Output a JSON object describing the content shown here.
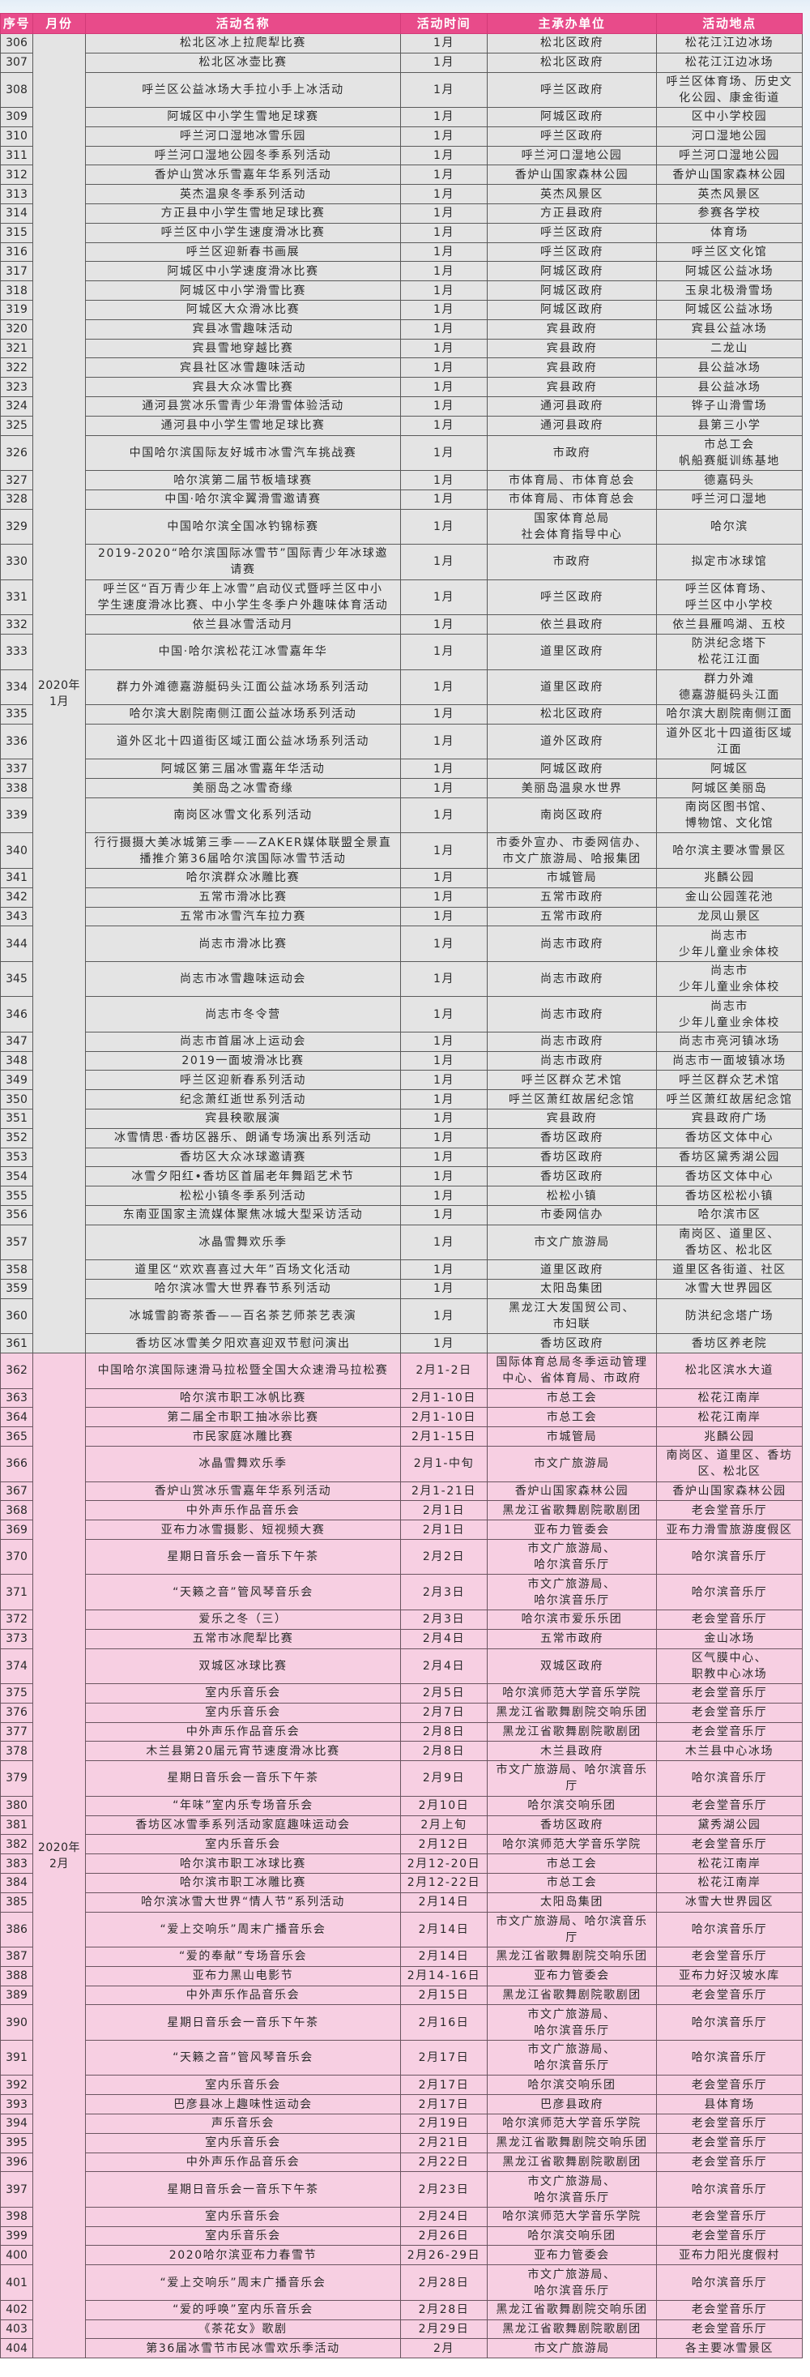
{
  "colors": {
    "header": "#e84b8a",
    "jan_row": "#e4e4e4",
    "feb_row": "#f7cfe2"
  },
  "headers": [
    "序号",
    "月份",
    "活动名称",
    "活动时间",
    "主承办单位",
    "活动地点"
  ],
  "groups": [
    {
      "month": "2020年\n1月",
      "cls": "jan",
      "rows": [
        [
          "306",
          "松北区冰上拉爬犁比赛",
          "1月",
          "松北区政府",
          "松花江江边冰场"
        ],
        [
          "307",
          "松北区冰壶比赛",
          "1月",
          "松北区政府",
          "松花江江边冰场"
        ],
        [
          "308",
          "呼兰区公益冰场大手拉小手上冰活动",
          "1月",
          "呼兰区政府",
          "呼兰区体育场、历史文\n化公园、康金街道"
        ],
        [
          "309",
          "阿城区中小学生雪地足球赛",
          "1月",
          "阿城区政府",
          "区中小学校园"
        ],
        [
          "310",
          "呼兰河口湿地冰雪乐园",
          "1月",
          "呼兰区政府",
          "河口湿地公园"
        ],
        [
          "311",
          "呼兰河口湿地公园冬季系列活动",
          "1月",
          "呼兰河口湿地公园",
          "呼兰河口湿地公园"
        ],
        [
          "312",
          "香炉山赏冰乐雪嘉年华系列活动",
          "1月",
          "香炉山国家森林公园",
          "香炉山国家森林公园"
        ],
        [
          "313",
          "英杰温泉冬季系列活动",
          "1月",
          "英杰风景区",
          "英杰风景区"
        ],
        [
          "314",
          "方正县中小学生雪地足球比赛",
          "1月",
          "方正县政府",
          "参赛各学校"
        ],
        [
          "315",
          "呼兰区中小学生速度滑冰比赛",
          "1月",
          "呼兰区政府",
          "体育场"
        ],
        [
          "316",
          "呼兰区迎新春书画展",
          "1月",
          "呼兰区政府",
          "呼兰区文化馆"
        ],
        [
          "317",
          "阿城区中小学速度滑冰比赛",
          "1月",
          "阿城区政府",
          "阿城区公益冰场"
        ],
        [
          "318",
          "阿城区中小学滑雪比赛",
          "1月",
          "阿城区政府",
          "玉泉北极滑雪场"
        ],
        [
          "319",
          "阿城区大众滑冰比赛",
          "1月",
          "阿城区政府",
          "阿城区公益冰场"
        ],
        [
          "320",
          "宾县冰雪趣味活动",
          "1月",
          "宾县政府",
          "宾县公益冰场"
        ],
        [
          "321",
          "宾县雪地穿越比赛",
          "1月",
          "宾县政府",
          "二龙山"
        ],
        [
          "322",
          "宾县社区冰雪趣味活动",
          "1月",
          "宾县政府",
          "县公益冰场"
        ],
        [
          "323",
          "宾县大众冰雪比赛",
          "1月",
          "宾县政府",
          "县公益冰场"
        ],
        [
          "324",
          "通河县赏冰乐雪青少年滑雪体验活动",
          "1月",
          "通河县政府",
          "铧子山滑雪场"
        ],
        [
          "325",
          "通河县中小学生雪地足球比赛",
          "1月",
          "通河县政府",
          "县第三小学"
        ],
        [
          "326",
          "中国哈尔滨国际友好城市冰雪汽车挑战赛",
          "1月",
          "市政府",
          "市总工会\n帆船赛艇训练基地"
        ],
        [
          "327",
          "哈尔滨第二届节板墙球赛",
          "1月",
          "市体育局、市体育总会",
          "德嘉码头"
        ],
        [
          "328",
          "中国·哈尔滨伞翼滑雪邀请赛",
          "1月",
          "市体育局、市体育总会",
          "呼兰河口湿地"
        ],
        [
          "329",
          "中国哈尔滨全国冰钓锦标赛",
          "1月",
          "国家体育总局\n社会体育指导中心",
          "哈尔滨"
        ],
        [
          "330",
          "2019-2020“哈尔滨国际冰雪节”国际青少年冰球邀\n请赛",
          "1月",
          "市政府",
          "拟定市冰球馆"
        ],
        [
          "331",
          "呼兰区“百万青少年上冰雪”启动仪式暨呼兰区中小\n学生速度滑冰比赛、中小学生冬季户外趣味体育活动",
          "1月",
          "呼兰区政府",
          "呼兰区体育场、\n呼兰区中小学校"
        ],
        [
          "332",
          "依兰县冰雪活动月",
          "1月",
          "依兰县政府",
          "依兰县雁鸣湖、五校"
        ],
        [
          "333",
          "中国·哈尔滨松花江冰雪嘉年华",
          "1月",
          "道里区政府",
          "防洪纪念塔下\n松花江江面"
        ],
        [
          "334",
          "群力外滩德嘉游艇码头江面公益冰场系列活动",
          "1月",
          "道里区政府",
          "群力外滩\n德嘉游艇码头江面"
        ],
        [
          "335",
          "哈尔滨大剧院南侧江面公益冰场系列活动",
          "1月",
          "松北区政府",
          "哈尔滨大剧院南侧江面"
        ],
        [
          "336",
          "道外区北十四道街区域江面公益冰场系列活动",
          "1月",
          "道外区政府",
          "道外区北十四道街区域\n江面"
        ],
        [
          "337",
          "阿城区第三届冰雪嘉年华活动",
          "1月",
          "阿城区政府",
          "阿城区"
        ],
        [
          "338",
          "美丽岛之冰雪奇缘",
          "1月",
          "美丽岛温泉水世界",
          "阿城区美丽岛"
        ],
        [
          "339",
          "南岗区冰雪文化系列活动",
          "1月",
          "南岗区政府",
          "南岗区图书馆、\n博物馆、文化馆"
        ],
        [
          "340",
          "行行摄摄大美冰城第三季——ZAKER媒体联盟全景直\n播推介第36届哈尔滨国际冰雪节活动",
          "1月",
          "市委外宣办、市委网信办、\n市文广旅游局、哈报集团",
          "哈尔滨主要冰雪景区"
        ],
        [
          "341",
          "哈尔滨群众冰雕比赛",
          "1月",
          "市城管局",
          "兆麟公园"
        ],
        [
          "342",
          "五常市滑冰比赛",
          "1月",
          "五常市政府",
          "金山公园莲花池"
        ],
        [
          "343",
          "五常市冰雪汽车拉力赛",
          "1月",
          "五常市政府",
          "龙凤山景区"
        ],
        [
          "344",
          "尚志市滑冰比赛",
          "1月",
          "尚志市政府",
          "尚志市\n少年儿童业余体校"
        ],
        [
          "345",
          "尚志市冰雪趣味运动会",
          "1月",
          "尚志市政府",
          "尚志市\n少年儿童业余体校"
        ],
        [
          "346",
          "尚志市冬令营",
          "1月",
          "尚志市政府",
          "尚志市\n少年儿童业余体校"
        ],
        [
          "347",
          "尚志市首届冰上运动会",
          "1月",
          "尚志市政府",
          "尚志市亮河镇冰场"
        ],
        [
          "348",
          "2019一面坡滑冰比赛",
          "1月",
          "尚志市政府",
          "尚志市一面坡镇冰场"
        ],
        [
          "349",
          "呼兰区迎新春系列活动",
          "1月",
          "呼兰区群众艺术馆",
          "呼兰区群众艺术馆"
        ],
        [
          "350",
          "纪念萧红逝世系列活动",
          "1月",
          "呼兰区萧红故居纪念馆",
          "呼兰区萧红故居纪念馆"
        ],
        [
          "351",
          "宾县秧歌展演",
          "1月",
          "宾县政府",
          "宾县政府广场"
        ],
        [
          "352",
          "冰雪情思·香坊区器乐、朗诵专场演出系列活动",
          "1月",
          "香坊区政府",
          "香坊区文体中心"
        ],
        [
          "353",
          "香坊区大众冰球邀请赛",
          "1月",
          "香坊区政府",
          "香坊区黛秀湖公园"
        ],
        [
          "354",
          "冰雪夕阳红•香坊区首届老年舞蹈艺术节",
          "1月",
          "香坊区政府",
          "香坊区文体中心"
        ],
        [
          "355",
          "松松小镇冬季系列活动",
          "1月",
          "松松小镇",
          "香坊区松松小镇"
        ],
        [
          "356",
          "东南亚国家主流媒体聚焦冰城大型采访活动",
          "1月",
          "市委网信办",
          "哈尔滨市区"
        ],
        [
          "357",
          "冰晶雪舞欢乐季",
          "1月",
          "市文广旅游局",
          "南岗区、道里区、\n香坊区、松北区"
        ],
        [
          "358",
          "道里区“欢欢喜喜过大年”百场文化活动",
          "1月",
          "道里区政府",
          "道里区各街道、社区"
        ],
        [
          "359",
          "哈尔滨冰雪大世界春节系列活动",
          "1月",
          "太阳岛集团",
          "冰雪大世界园区"
        ],
        [
          "360",
          "冰城雪韵寄茶香——百名茶艺师茶艺表演",
          "1月",
          "黑龙江大发国贸公司、\n市妇联",
          "防洪纪念塔广场"
        ],
        [
          "361",
          "香坊区冰雪美夕阳欢喜迎双节慰问演出",
          "1月",
          "香坊区政府",
          "香坊区养老院"
        ]
      ]
    },
    {
      "month": "2020年\n2月",
      "cls": "feb",
      "rows": [
        [
          "362",
          "中国哈尔滨国际速滑马拉松暨全国大众速滑马拉松赛",
          "2月1-2日",
          "国际体育总局冬季运动管理\n中心、省体育局、市政府",
          "松北区滨水大道"
        ],
        [
          "363",
          "哈尔滨市职工冰帆比赛",
          "2月1-10日",
          "市总工会",
          "松花江南岸"
        ],
        [
          "364",
          "第二届全市职工抽冰尜比赛",
          "2月1-10日",
          "市总工会",
          "松花江南岸"
        ],
        [
          "365",
          "市民家庭冰雕比赛",
          "2月1-15日",
          "市城管局",
          "兆麟公园"
        ],
        [
          "366",
          "冰晶雪舞欢乐季",
          "2月1-中旬",
          "市文广旅游局",
          "南岗区、道里区、香坊\n区、松北区"
        ],
        [
          "367",
          "香炉山赏冰乐雪嘉年华系列活动",
          "2月1-21日",
          "香炉山国家森林公园",
          "香炉山国家森林公园"
        ],
        [
          "368",
          "中外声乐作品音乐会",
          "2月1日",
          "黑龙江省歌舞剧院歌剧团",
          "老会堂音乐厅"
        ],
        [
          "369",
          "亚布力冰雪摄影、短视频大赛",
          "2月1日",
          "亚布力管委会",
          "亚布力滑雪旅游度假区"
        ],
        [
          "370",
          "星期日音乐会一音乐下午茶",
          "2月2日",
          "市文广旅游局、\n哈尔滨音乐厅",
          "哈尔滨音乐厅"
        ],
        [
          "371",
          "“天籁之音”管风琴音乐会",
          "2月3日",
          "市文广旅游局、\n哈尔滨音乐厅",
          "哈尔滨音乐厅"
        ],
        [
          "372",
          "爱乐之冬（三）",
          "2月3日",
          "哈尔滨市爱乐乐团",
          "老会堂音乐厅"
        ],
        [
          "373",
          "五常市冰爬犁比赛",
          "2月4日",
          "五常市政府",
          "金山冰场"
        ],
        [
          "374",
          "双城区冰球比赛",
          "2月4日",
          "双城区政府",
          "区气膜中心、\n职教中心冰场"
        ],
        [
          "375",
          "室内乐音乐会",
          "2月5日",
          "哈尔滨师范大学音乐学院",
          "老会堂音乐厅"
        ],
        [
          "376",
          "室内乐音乐会",
          "2月7日",
          "黑龙江省歌舞剧院交响乐团",
          "老会堂音乐厅"
        ],
        [
          "377",
          "中外声乐作品音乐会",
          "2月8日",
          "黑龙江省歌舞剧院歌剧团",
          "老会堂音乐厅"
        ],
        [
          "378",
          "木兰县第20届元宵节速度滑冰比赛",
          "2月8日",
          "木兰县政府",
          "木兰县中心冰场"
        ],
        [
          "379",
          "星期日音乐会一音乐下午茶",
          "2月9日",
          "市文广旅游局、哈尔滨音乐\n厅",
          "哈尔滨音乐厅"
        ],
        [
          "380",
          "“年味”室内乐专场音乐会",
          "2月10日",
          "哈尔滨交响乐团",
          "老会堂音乐厅"
        ],
        [
          "381",
          "香坊区冰雪季系列活动家庭趣味运动会",
          "2月上旬",
          "香坊区政府",
          "黛秀湖公园"
        ],
        [
          "382",
          "室内乐音乐会",
          "2月12日",
          "哈尔滨师范大学音乐学院",
          "老会堂音乐厅"
        ],
        [
          "383",
          "哈尔滨市职工冰球比赛",
          "2月12-20日",
          "市总工会",
          "松花江南岸"
        ],
        [
          "384",
          "哈尔滨市职工冰雕比赛",
          "2月12-22日",
          "市总工会",
          "松花江南岸"
        ],
        [
          "385",
          "哈尔滨冰雪大世界“情人节”系列活动",
          "2月14日",
          "太阳岛集团",
          "冰雪大世界园区"
        ],
        [
          "386",
          "“爱上交响乐”周末广播音乐会",
          "2月14日",
          "市文广旅游局、哈尔滨音乐\n厅",
          "哈尔滨音乐厅"
        ],
        [
          "387",
          "“爱的奉献”专场音乐会",
          "2月14日",
          "黑龙江省歌舞剧院交响乐团",
          "老会堂音乐厅"
        ],
        [
          "388",
          "亚布力黑山电影节",
          "2月14-16日",
          "亚布力管委会",
          "亚布力好汉坡水库"
        ],
        [
          "389",
          "中外声乐作品音乐会",
          "2月15日",
          "黑龙江省歌舞剧院歌剧团",
          "老会堂音乐厅"
        ],
        [
          "390",
          "星期日音乐会一音乐下午茶",
          "2月16日",
          "市文广旅游局、\n哈尔滨音乐厅",
          "哈尔滨音乐厅"
        ],
        [
          "391",
          "“天籁之音”管风琴音乐会",
          "2月17日",
          "市文广旅游局、\n哈尔滨音乐厅",
          "哈尔滨音乐厅"
        ],
        [
          "392",
          "室内乐音乐会",
          "2月17日",
          "哈尔滨交响乐团",
          "老会堂音乐厅"
        ],
        [
          "393",
          "巴彦县冰上趣味性运动会",
          "2月17日",
          "巴彦县政府",
          "县体育场"
        ],
        [
          "394",
          "声乐音乐会",
          "2月19日",
          "哈尔滨师范大学音乐学院",
          "老会堂音乐厅"
        ],
        [
          "395",
          "室内乐音乐会",
          "2月21日",
          "黑龙江省歌舞剧院交响乐团",
          "老会堂音乐厅"
        ],
        [
          "396",
          "中外声乐作品音乐会",
          "2月22日",
          "黑龙江省歌舞剧院歌剧团",
          "老会堂音乐厅"
        ],
        [
          "397",
          "星期日音乐会一音乐下午茶",
          "2月23日",
          "市文广旅游局、\n哈尔滨音乐厅",
          "哈尔滨音乐厅"
        ],
        [
          "398",
          "室内乐音乐会",
          "2月24日",
          "哈尔滨师范大学音乐学院",
          "老会堂音乐厅"
        ],
        [
          "399",
          "室内乐音乐会",
          "2月26日",
          "哈尔滨交响乐团",
          "老会堂音乐厅"
        ],
        [
          "400",
          "2020哈尔滨亚布力春雪节",
          "2月26-29日",
          "亚布力管委会",
          "亚布力阳光度假村"
        ],
        [
          "401",
          "“爱上交响乐”周末广播音乐会",
          "2月28日",
          "市文广旅游局、\n哈尔滨音乐厅",
          "哈尔滨音乐厅"
        ],
        [
          "402",
          "“爱的呼唤”室内乐音乐会",
          "2月28日",
          "黑龙江省歌舞剧院交响乐团",
          "老会堂音乐厅"
        ],
        [
          "403",
          "《茶花女》歌剧",
          "2月29日",
          "黑龙江省歌舞剧院歌剧团",
          "老会堂音乐厅"
        ],
        [
          "404",
          "第36届冰雪节市民冰雪欢乐季活动",
          "2月",
          "市文广旅游局",
          "各主要冰雪景区"
        ]
      ]
    }
  ]
}
